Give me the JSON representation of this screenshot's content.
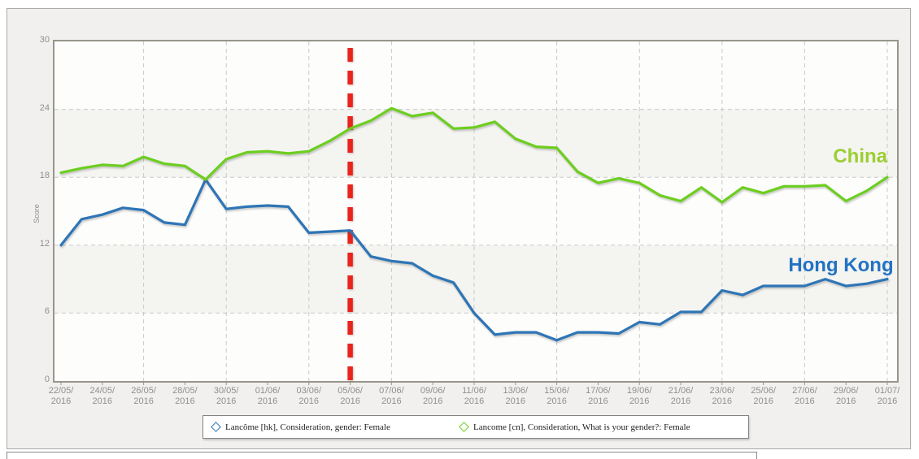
{
  "axes": {
    "score_label": "Score",
    "x_tick_year": "2016",
    "x_tick_dates": [
      "22/05",
      "24/05",
      "26/05",
      "28/05",
      "30/05",
      "01/06",
      "03/06",
      "05/06",
      "07/06",
      "09/06",
      "11/06",
      "13/06",
      "15/06",
      "17/06",
      "19/06",
      "21/06",
      "23/06",
      "25/06",
      "27/06",
      "29/06",
      "01/07"
    ]
  },
  "chart_data": {
    "type": "line",
    "title": "",
    "xlabel": "",
    "ylabel": "Score",
    "ylim": [
      0,
      30
    ],
    "yticks": [
      0,
      6,
      12,
      18,
      24,
      30
    ],
    "grid": "dashed",
    "legend_position": "bottom",
    "categories": [
      "22/05",
      "23/05",
      "24/05",
      "25/05",
      "26/05",
      "27/05",
      "28/05",
      "29/05",
      "30/05",
      "31/05",
      "01/06",
      "02/06",
      "03/06",
      "04/06",
      "05/06",
      "06/06",
      "07/06",
      "08/06",
      "09/06",
      "10/06",
      "11/06",
      "12/06",
      "13/06",
      "14/06",
      "15/06",
      "16/06",
      "17/06",
      "18/06",
      "19/06",
      "20/06",
      "21/06",
      "22/06",
      "23/06",
      "24/06",
      "25/06",
      "26/06",
      "27/06",
      "28/06",
      "29/06",
      "30/06",
      "01/07"
    ],
    "year": "2016",
    "series": [
      {
        "name": "Lancôme [hk], Consideration, gender: Female",
        "region_label": "Hong Kong",
        "color": "#2E75B6",
        "values": [
          12.0,
          14.3,
          14.7,
          15.3,
          15.1,
          14.0,
          13.8,
          17.8,
          15.2,
          15.4,
          15.5,
          15.4,
          13.1,
          13.2,
          13.3,
          11.0,
          10.6,
          10.4,
          9.3,
          8.7,
          6.0,
          4.1,
          4.3,
          4.3,
          3.6,
          4.3,
          4.3,
          4.2,
          5.2,
          5.0,
          6.1,
          6.1,
          8.0,
          7.6,
          8.4,
          8.4,
          8.4,
          9.0,
          8.4,
          8.6,
          9.0
        ]
      },
      {
        "name": "Lancome [cn], Consideration, What is your gender?: Female",
        "region_label": "China",
        "color": "#6CCE1F",
        "values": [
          18.4,
          18.8,
          19.1,
          19.0,
          19.8,
          19.2,
          19.0,
          17.8,
          19.6,
          20.2,
          20.3,
          20.1,
          20.3,
          21.2,
          22.3,
          23.0,
          24.1,
          23.4,
          23.7,
          22.3,
          22.4,
          22.9,
          21.4,
          20.7,
          20.6,
          18.5,
          17.5,
          17.9,
          17.5,
          16.4,
          15.9,
          17.1,
          15.8,
          17.1,
          16.6,
          17.2,
          17.2,
          17.3,
          15.9,
          16.8,
          18.0
        ]
      }
    ],
    "reference_line": {
      "category": "05/06",
      "index": 14,
      "color": "#E8251D",
      "style": "dashed"
    },
    "annotations": [
      {
        "text": "China",
        "color": "#9CCE33",
        "anchor_day": 40.0,
        "value": 19.3
      },
      {
        "text": "Hong Kong",
        "color": "#2272C4",
        "anchor_day": 40.3,
        "value": 9.7
      }
    ]
  },
  "legend": {
    "items": [
      {
        "label": "Lancôme [hk], Consideration, gender: Female",
        "marker": "diamond-outline",
        "color": "#2E75B6"
      },
      {
        "label": "Lancome [cn], Consideration, What is your gender?: Female",
        "marker": "diamond-outline",
        "color": "#6CCE1F"
      }
    ]
  }
}
